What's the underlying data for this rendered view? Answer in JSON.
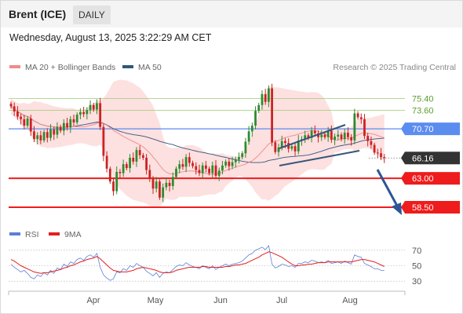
{
  "header": {
    "title": "Brent (ICE)",
    "period": "DAILY"
  },
  "datetime": "Wednesday, August 13, 2025 3:22:29 AM CET",
  "legend": {
    "ma20": {
      "label": "MA 20 + Bollinger Bands",
      "color": "#f08a8a"
    },
    "ma50": {
      "label": "MA 50",
      "color": "#34557c"
    },
    "rsi": {
      "label": "RSI",
      "color": "#5b7fd6"
    },
    "ma9": {
      "label": "9MA",
      "color": "#e02020"
    }
  },
  "copyright": "Research © 2025 Trading Central",
  "colors": {
    "up": "#2e8b2e",
    "down": "#cc2222",
    "band": "#fde0e0",
    "support": "#ee1c1c",
    "resistance": "#9acd6e",
    "pivot": "#5b8cf0",
    "last": "#333333"
  },
  "chart_data": [
    {
      "type": "candlestick",
      "title": "Brent (ICE)",
      "ylim": [
        57.4,
        78.9
      ],
      "x_labels": [
        "Apr",
        "May",
        "Jun",
        "Jul",
        "Aug"
      ],
      "price_labels": [
        {
          "label": "75.40",
          "value": 75.4,
          "kind": "resistance"
        },
        {
          "label": "73.60",
          "value": 73.6,
          "kind": "resistance"
        },
        {
          "label": "70.70",
          "value": 70.7,
          "kind": "pivot"
        },
        {
          "label": "66.16",
          "value": 66.16,
          "kind": "last"
        },
        {
          "label": "63.00",
          "value": 63.0,
          "kind": "support"
        },
        {
          "label": "58.50",
          "value": 58.5,
          "kind": "support"
        }
      ],
      "close": [
        74.2,
        73.4,
        72.6,
        72.2,
        71.2,
        72.3,
        70.3,
        69.1,
        69.7,
        68.9,
        70.2,
        69.3,
        70.6,
        69.8,
        71.0,
        70.4,
        71.6,
        70.9,
        72.2,
        71.7,
        72.9,
        73.3,
        73.0,
        73.6,
        74.4,
        73.7,
        74.7,
        71.0,
        66.5,
        64.5,
        62.5,
        61.0,
        64.0,
        63.8,
        65.2,
        64.6,
        66.2,
        65.6,
        67.4,
        66.6,
        66.2,
        64.3,
        62.9,
        61.4,
        62.5,
        60.0,
        61.6,
        62.3,
        61.8,
        63.2,
        64.5,
        65.2,
        64.8,
        66.3,
        65.4,
        64.9,
        64.3,
        63.8,
        65.0,
        64.5,
        63.8,
        65.0,
        63.4,
        64.2,
        65.0,
        65.6,
        64.9,
        65.5,
        65.9,
        66.3,
        66.9,
        68.7,
        70.3,
        71.2,
        73.5,
        74.4,
        76.1,
        74.9,
        77.0,
        68.6,
        67.1,
        67.8,
        68.8,
        68.5,
        67.6,
        68.0,
        67.2,
        68.9,
        69.1,
        69.7,
        69.3,
        70.4,
        70.0,
        69.4,
        69.8,
        69.4,
        70.4,
        69.0,
        69.5,
        69.8,
        69.1,
        70.1,
        69.4,
        68.9,
        73.1,
        72.5,
        72.2,
        69.6,
        68.8,
        68.2,
        67.0,
        66.9,
        66.3,
        66.2
      ],
      "rsi": [
        52,
        48,
        45,
        42,
        44,
        40,
        35,
        33,
        38,
        36,
        41,
        38,
        44,
        40,
        47,
        45,
        52,
        49,
        55,
        53,
        58,
        60,
        57,
        62,
        64,
        61,
        66,
        48,
        38,
        34,
        31,
        33,
        42,
        41,
        46,
        44,
        50,
        48,
        53,
        50,
        48,
        43,
        40,
        37,
        41,
        35,
        40,
        42,
        41,
        45,
        49,
        51,
        50,
        54,
        51,
        49,
        48,
        46,
        50,
        48,
        46,
        50,
        45,
        48,
        50,
        52,
        50,
        52,
        53,
        54,
        56,
        60,
        64,
        66,
        70,
        72,
        74,
        71,
        76,
        52,
        47,
        49,
        52,
        51,
        49,
        50,
        48,
        53,
        53,
        55,
        54,
        57,
        56,
        54,
        55,
        54,
        57,
        53,
        54,
        55,
        53,
        56,
        54,
        52,
        64,
        62,
        61,
        53,
        51,
        49,
        46,
        46,
        44,
        44
      ],
      "ma9": [
        58,
        56,
        53,
        50,
        48,
        46,
        44,
        42,
        41,
        40,
        41,
        41,
        42,
        43,
        44,
        45,
        47,
        48,
        50,
        51,
        53,
        55,
        56,
        58,
        59,
        60,
        62,
        59,
        55,
        51,
        47,
        44,
        43,
        42,
        42,
        42,
        43,
        44,
        46,
        47,
        48,
        47,
        46,
        45,
        44,
        42,
        41,
        41,
        41,
        42,
        44,
        45,
        46,
        47,
        48,
        48,
        48,
        48,
        49,
        49,
        48,
        48,
        48,
        48,
        48,
        49,
        49,
        50,
        51,
        51,
        52,
        53,
        55,
        57,
        59,
        61,
        64,
        66,
        68,
        67,
        65,
        63,
        61,
        58,
        55,
        52,
        50,
        50,
        51,
        51,
        52,
        52,
        53,
        54,
        54,
        54,
        55,
        55,
        55,
        55,
        55,
        55,
        55,
        55,
        56,
        57,
        58,
        58,
        57,
        56,
        55,
        53,
        51,
        49
      ],
      "rsi_levels": [
        70,
        50,
        30
      ],
      "rsi_labels": [
        "70",
        "50",
        "30"
      ]
    }
  ]
}
